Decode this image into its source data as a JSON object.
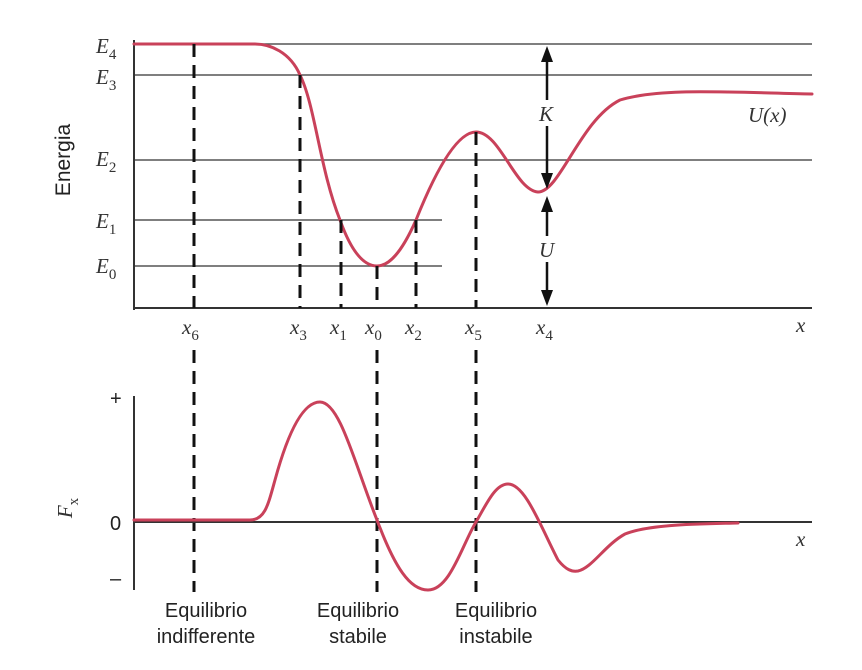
{
  "energy_levels": [
    {
      "label": "E",
      "sub": "4"
    },
    {
      "label": "E",
      "sub": "3"
    },
    {
      "label": "E",
      "sub": "2"
    },
    {
      "label": "E",
      "sub": "1"
    },
    {
      "label": "E",
      "sub": "0"
    }
  ],
  "top_axis": {
    "ylabel": "Energia",
    "xlabel": "x",
    "curve_label": "U(x)",
    "points": [
      {
        "label": "x",
        "sub": "6"
      },
      {
        "label": "x",
        "sub": "3"
      },
      {
        "label": "x",
        "sub": "1"
      },
      {
        "label": "x",
        "sub": "0"
      },
      {
        "label": "x",
        "sub": "2"
      },
      {
        "label": "x",
        "sub": "5"
      },
      {
        "label": "x",
        "sub": "4"
      }
    ],
    "kinetic_label": "K",
    "potential_label": "U"
  },
  "bottom_axis": {
    "ylabel": "F",
    "ylabel_sub": "x",
    "xlabel": "x",
    "ticks": {
      "plus": "+",
      "zero": "0",
      "minus": "–"
    }
  },
  "equilibria": [
    {
      "line1": "Equilibrio",
      "line2": "indifferente"
    },
    {
      "line1": "Equilibrio",
      "line2": "stabile"
    },
    {
      "line1": "Equilibrio",
      "line2": "instabile"
    }
  ],
  "colors": {
    "curve": "#c9415a",
    "lines": "#555555"
  }
}
